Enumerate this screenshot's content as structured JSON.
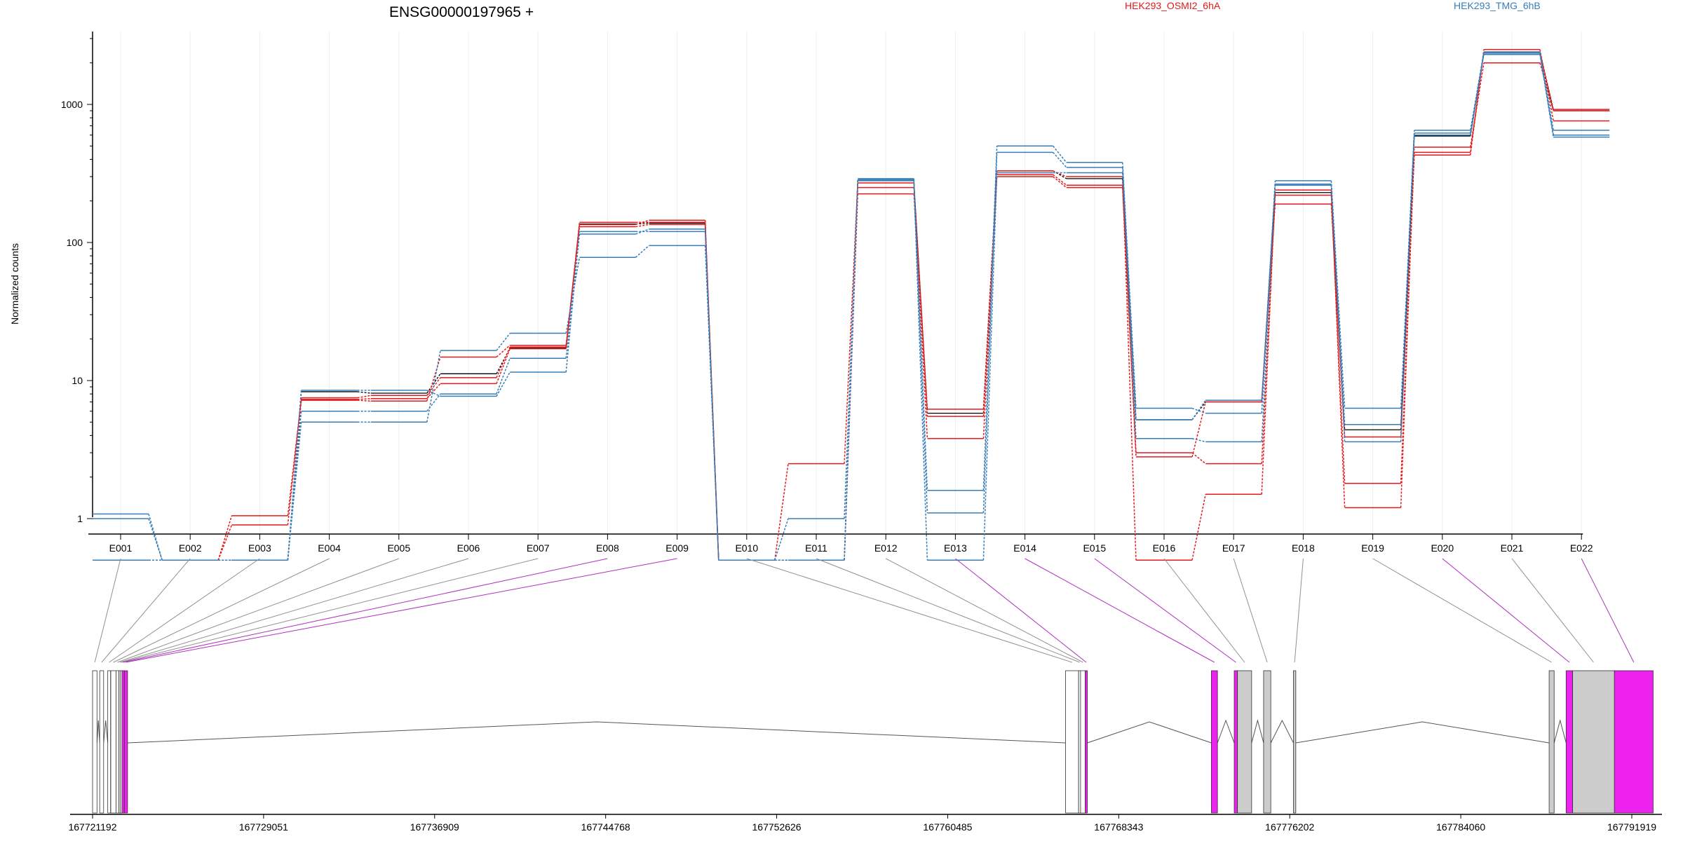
{
  "chart_data": {
    "type": "line",
    "title": "ENSG00000197965 +",
    "ylabel": "Normalized counts",
    "xlabel": "",
    "y_scale": "log",
    "ylim": [
      0.5,
      3500
    ],
    "y_ticks": [
      1,
      10,
      100,
      1000
    ],
    "y_tick_labels": [
      "1",
      "10",
      "100",
      "1000"
    ],
    "grid": "vertical",
    "legend_placement": "top",
    "exons": [
      "E001",
      "E002",
      "E003",
      "E004",
      "E005",
      "E006",
      "E007",
      "E008",
      "E009",
      "E010",
      "E011",
      "E012",
      "E013",
      "E014",
      "E015",
      "E016",
      "E017",
      "E018",
      "E019",
      "E020",
      "E021",
      "E022"
    ],
    "series": [
      {
        "group": "HEK293_OSMI2_6hA",
        "color": "#e41a1c",
        "values": [
          0.5,
          0.5,
          0.9,
          7.5,
          7.8,
          10.5,
          17.5,
          140,
          140,
          0.5,
          2.5,
          270,
          6.2,
          330,
          300,
          0.5,
          1.5,
          240,
          1.2,
          490,
          2000,
          900
        ]
      },
      {
        "group": "HEK293_OSMI2_6hA",
        "color": "#e41a1c",
        "values": [
          0.5,
          0.5,
          1.05,
          7.3,
          7.4,
          9.5,
          17.0,
          135,
          145,
          0.5,
          0.5,
          250,
          5.5,
          310,
          260,
          3.0,
          2.5,
          220,
          1.8,
          450,
          2400,
          920
        ]
      },
      {
        "group": "HEK293_OSMI2_6hA",
        "color": "#e41a1c",
        "values": [
          0.5,
          0.5,
          0.5,
          7.2,
          7.1,
          14.8,
          18.0,
          130,
          135,
          0.5,
          0.5,
          225,
          3.8,
          300,
          250,
          2.8,
          7.0,
          190,
          3.9,
          430,
          2500,
          760
        ]
      },
      {
        "group": "HEK293_TMG_6hB",
        "color": "#377eb8",
        "values": [
          1.0,
          0.5,
          0.5,
          6.0,
          6.0,
          8.0,
          14.5,
          115,
          125,
          0.5,
          0.5,
          290,
          1.6,
          500,
          380,
          6.3,
          5.8,
          280,
          6.3,
          650,
          2400,
          650
        ]
      },
      {
        "group": "HEK293_TMG_6hB",
        "color": "#377eb8",
        "values": [
          1.08,
          0.5,
          0.5,
          5.0,
          5.0,
          16.5,
          22.0,
          78,
          95,
          0.5,
          1.0,
          285,
          1.1,
          450,
          350,
          5.2,
          7.2,
          260,
          4.8,
          620,
          2350,
          600
        ]
      },
      {
        "group": "HEK293_TMG_6hB",
        "color": "#377eb8",
        "values": [
          0.5,
          0.5,
          0.5,
          8.5,
          8.5,
          7.7,
          11.5,
          120,
          120,
          0.5,
          0.5,
          280,
          0.5,
          320,
          320,
          3.8,
          3.6,
          265,
          3.6,
          600,
          2300,
          580
        ]
      }
    ],
    "model_lines": [
      {
        "color": "#000000",
        "values": [
          0.5,
          0.5,
          0.5,
          8.3,
          8.1,
          11.2,
          17.2,
          136,
          138,
          0.5,
          0.5,
          280,
          5.8,
          330,
          290,
          5.2,
          7.0,
          230,
          4.4,
          590,
          2350,
          900
        ]
      }
    ],
    "x_genome_ticks": [
      "167721192",
      "167729051",
      "167736909",
      "167744768",
      "167752626",
      "167760485",
      "167768343",
      "167776202",
      "167784060",
      "167791919"
    ],
    "genome_range": [
      167721192,
      167791919
    ],
    "exon_coords": [
      [
        167721192,
        167721395
      ],
      [
        167721520,
        167721700
      ],
      [
        167721890,
        167722020
      ],
      [
        167722030,
        167722270
      ],
      [
        167722270,
        167722400
      ],
      [
        167722400,
        167722460
      ],
      [
        167722460,
        167722540
      ],
      [
        167722540,
        167722650
      ],
      [
        167722650,
        167722800
      ],
      [
        167765900,
        167766500
      ],
      [
        167766500,
        167766590
      ],
      [
        167766590,
        167766800
      ],
      [
        167766800,
        167766900
      ],
      [
        167772600,
        167772880
      ],
      [
        167773650,
        167773800
      ],
      [
        167773800,
        167774450
      ],
      [
        167775000,
        167775330
      ],
      [
        167776370,
        167776480
      ],
      [
        167788120,
        167788350
      ],
      [
        167788900,
        167789200
      ],
      [
        167789200,
        167791120
      ],
      [
        167791120,
        167792900
      ]
    ],
    "exon_highlight": [
      false,
      false,
      false,
      false,
      false,
      false,
      false,
      true,
      true,
      false,
      false,
      false,
      true,
      true,
      true,
      false,
      false,
      false,
      false,
      true,
      false,
      true
    ],
    "highlight_color": "#ee22ee",
    "exon_color": "#cccccc"
  },
  "legend": [
    {
      "label": "HEK293_OSMI2_6hA",
      "color": "#e41a1c"
    },
    {
      "label": "HEK293_TMG_6hB",
      "color": "#377eb8"
    }
  ]
}
